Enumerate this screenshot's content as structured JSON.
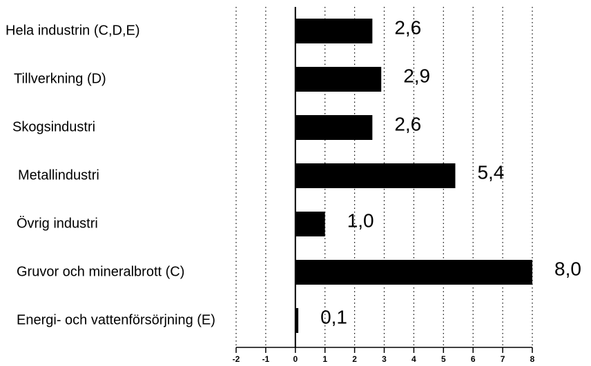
{
  "chart_data": {
    "type": "bar",
    "orientation": "horizontal",
    "categories": [
      "Hela industrin (C,D,E)",
      "Tillverkning (D)",
      "Skogsindustri",
      "Metallindustri",
      "Övrig industri",
      "Gruvor och mineralbrott (C)",
      "Energi- och vattenförsörjning (E)"
    ],
    "values": [
      2.6,
      2.9,
      2.6,
      5.4,
      1.0,
      8.0,
      0.1
    ],
    "value_labels": [
      "2,6",
      "2,9",
      "2,6",
      "5,4",
      "1,0",
      "8,0",
      "0,1"
    ],
    "color": "#000000",
    "xlim": [
      -2,
      8
    ],
    "xticks": [
      -2,
      -1,
      0,
      1,
      2,
      3,
      4,
      5,
      6,
      7,
      8
    ],
    "grid": true
  }
}
